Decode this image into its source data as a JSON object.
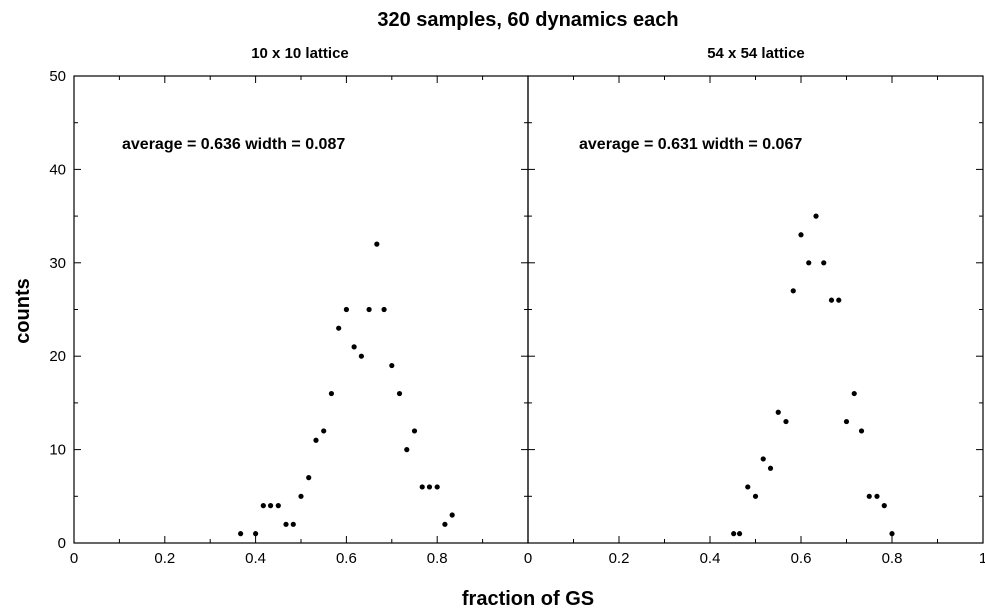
{
  "title": "320 samples, 60 dynamics each",
  "xlabel": "fraction of GS",
  "ylabel": "counts",
  "chart_data": [
    {
      "type": "scatter",
      "subtitle": "10 x 10 lattice",
      "annotation": "average = 0.636  width = 0.087",
      "xlim": [
        0,
        1
      ],
      "ylim": [
        0,
        50
      ],
      "xticks": [
        "0",
        "0.2",
        "0.4",
        "0.6",
        "0.8"
      ],
      "yticks": [
        "0",
        "10",
        "20",
        "30",
        "40",
        "50"
      ],
      "x": [
        0.367,
        0.4,
        0.417,
        0.433,
        0.45,
        0.467,
        0.483,
        0.5,
        0.517,
        0.533,
        0.55,
        0.567,
        0.583,
        0.6,
        0.617,
        0.633,
        0.65,
        0.667,
        0.683,
        0.7,
        0.717,
        0.733,
        0.75,
        0.767,
        0.783,
        0.8,
        0.817,
        0.833
      ],
      "y": [
        1,
        1,
        4,
        4,
        4,
        2,
        2,
        5,
        7,
        11,
        12,
        16,
        23,
        25,
        21,
        20,
        25,
        32,
        25,
        19,
        16,
        10,
        12,
        6,
        6,
        6,
        2,
        3
      ]
    },
    {
      "type": "scatter",
      "subtitle": "54 x 54 lattice",
      "annotation": "average = 0.631  width = 0.067",
      "xlim": [
        0,
        1
      ],
      "ylim": [
        0,
        50
      ],
      "xticks": [
        "0",
        "0.2",
        "0.4",
        "0.6",
        "0.8",
        "1"
      ],
      "yticks": [],
      "x": [
        0.452,
        0.465,
        0.483,
        0.5,
        0.517,
        0.533,
        0.55,
        0.567,
        0.583,
        0.6,
        0.617,
        0.633,
        0.65,
        0.667,
        0.683,
        0.7,
        0.717,
        0.733,
        0.75,
        0.767,
        0.783,
        0.8
      ],
      "y": [
        1,
        1,
        6,
        5,
        9,
        8,
        14,
        13,
        27,
        33,
        30,
        35,
        30,
        26,
        26,
        13,
        16,
        12,
        5,
        5,
        4,
        1
      ]
    }
  ]
}
